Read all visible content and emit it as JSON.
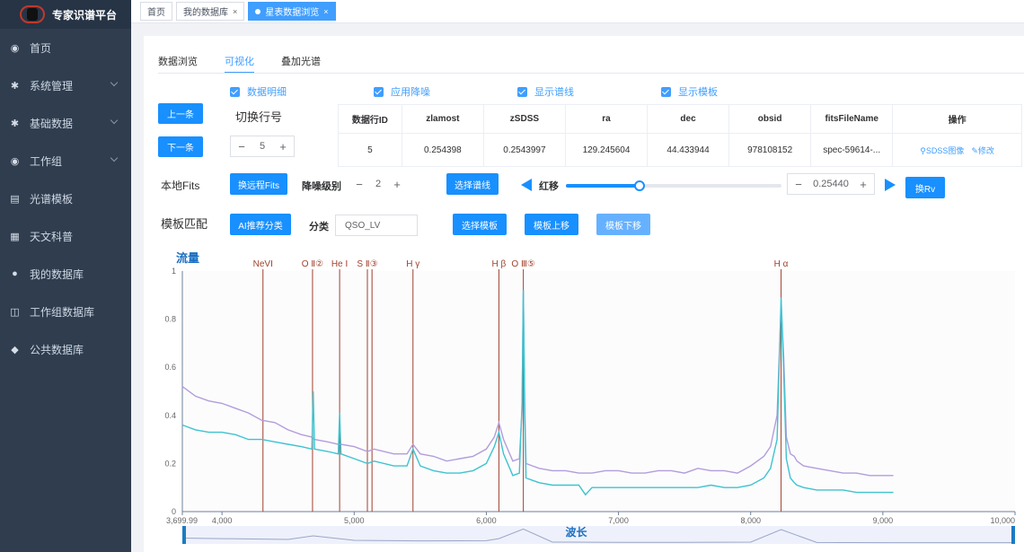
{
  "sidebar": {
    "title": "专家识谱平台",
    "items": [
      {
        "label": "首页",
        "icon": "dashboard-icon",
        "glyph": "◉",
        "expandable": false
      },
      {
        "label": "系统管理",
        "icon": "gear-icon",
        "glyph": "✱",
        "expandable": true
      },
      {
        "label": "基础数据",
        "icon": "gear-icon",
        "glyph": "✱",
        "expandable": true
      },
      {
        "label": "工作组",
        "icon": "dashboard-icon",
        "glyph": "◉",
        "expandable": true
      },
      {
        "label": "光谱模板",
        "icon": "chart-icon",
        "glyph": "▤",
        "expandable": false
      },
      {
        "label": "天文科普",
        "icon": "document-icon",
        "glyph": "▦",
        "expandable": false
      },
      {
        "label": "我的数据库",
        "icon": "user-icon",
        "glyph": "●",
        "expandable": false
      },
      {
        "label": "工作组数据库",
        "icon": "database-icon",
        "glyph": "◫",
        "expandable": false
      },
      {
        "label": "公共数据库",
        "icon": "users-icon",
        "glyph": "◆",
        "expandable": false
      }
    ]
  },
  "tabs": {
    "items": [
      {
        "label": "首页",
        "active": false,
        "closable": false
      },
      {
        "label": "我的数据库",
        "active": false,
        "closable": true
      },
      {
        "label": "星表数据浏览",
        "active": true,
        "closable": true
      }
    ],
    "close_glyph": "×"
  },
  "subtabs": {
    "browse": "数据浏览",
    "visualize": "可视化",
    "overlay": "叠加光谱"
  },
  "checkboxes": {
    "data_detail": "数据明细",
    "apply_denoise": "应用降噪",
    "show_lines": "显示谱线",
    "show_template": "显示模板"
  },
  "nav": {
    "prev": "上一条",
    "next": "下一条",
    "switch_row": "切换行号",
    "row_value": "5",
    "minus": "−",
    "plus": "+"
  },
  "table": {
    "headers": [
      "数据行ID",
      "zlamost",
      "zSDSS",
      "ra",
      "dec",
      "obsid",
      "fitsFileName",
      "操作"
    ],
    "row": [
      "5",
      "0.254398",
      "0.2543997",
      "129.245604",
      "44.433944",
      "978108152",
      "spec-59614-..."
    ],
    "action_sdss": "SDSS图像",
    "action_edit": "修改"
  },
  "controls": {
    "local_fits": "本地Fits",
    "remote_fits": "换远程Fits",
    "denoise_level_label": "降噪级别",
    "denoise_level": "2",
    "select_lines": "选择谱线",
    "redshift_label": "红移",
    "redshift_value": "0.25440",
    "redshift_fraction": 0.34,
    "change_rv": "换Rv",
    "template_match": "模板匹配",
    "ai_classify": "AI推荐分类",
    "class_label": "分类",
    "class_value": "QSO_LV",
    "select_template": "选择模板",
    "template_up": "模板上移",
    "template_down": "模板下移"
  },
  "chart_data": {
    "type": "line",
    "ylabel": "流量",
    "xlabel": "波长",
    "xlim": [
      3699.99,
      10000
    ],
    "ylim": [
      0,
      1
    ],
    "xticks": [
      {
        "value": 3699.99,
        "label": "3,699.99"
      },
      {
        "value": 4000,
        "label": "4,000"
      },
      {
        "value": 5000,
        "label": "5,000"
      },
      {
        "value": 6000,
        "label": "6,000"
      },
      {
        "value": 7000,
        "label": "7,000"
      },
      {
        "value": 8000,
        "label": "8,000"
      },
      {
        "value": 9000,
        "label": "9,000"
      },
      {
        "value": 10000,
        "label": "10,000"
      }
    ],
    "yticks": [
      {
        "value": 0,
        "label": "0"
      },
      {
        "value": 0.2,
        "label": "0.2"
      },
      {
        "value": 0.4,
        "label": "0.4"
      },
      {
        "value": 0.6,
        "label": "0.6"
      },
      {
        "value": 0.8,
        "label": "0.8"
      },
      {
        "value": 1,
        "label": "1"
      }
    ],
    "lines": [
      {
        "label": "NeVI",
        "x": 4310
      },
      {
        "label": "O Ⅱ②",
        "x": 4685
      },
      {
        "label": "He Ⅰ",
        "x": 4890
      },
      {
        "label": "S Ⅱ③",
        "x": 5100
      },
      {
        "label": "",
        "x": 5135
      },
      {
        "label": "H γ",
        "x": 5445
      },
      {
        "label": "H β",
        "x": 6095
      },
      {
        "label": "O Ⅲ⑤",
        "x": 6280
      },
      {
        "label": "H α",
        "x": 8230
      }
    ],
    "series": [
      {
        "color": "#b39ddb",
        "x": [
          3699.99,
          3800,
          3900,
          4000,
          4100,
          4200,
          4300,
          4400,
          4500,
          4600,
          4680,
          4700,
          4800,
          4880,
          4900,
          5000,
          5100,
          5150,
          5300,
          5400,
          5445,
          5500,
          5600,
          5700,
          5800,
          5900,
          6000,
          6060,
          6095,
          6130,
          6200,
          6250,
          6270,
          6280,
          6290,
          6300,
          6350,
          6400,
          6500,
          6600,
          6700,
          6800,
          6900,
          7000,
          7100,
          7200,
          7300,
          7400,
          7500,
          7600,
          7700,
          7800,
          7900,
          8000,
          8100,
          8150,
          8200,
          8230,
          8250,
          8270,
          8300,
          8330,
          8350,
          8400,
          8500,
          8600,
          8700,
          8800,
          8900,
          9000,
          9080
        ],
        "y": [
          0.52,
          0.48,
          0.46,
          0.45,
          0.43,
          0.41,
          0.38,
          0.37,
          0.34,
          0.32,
          0.31,
          0.3,
          0.29,
          0.28,
          0.28,
          0.27,
          0.25,
          0.26,
          0.24,
          0.24,
          0.28,
          0.24,
          0.23,
          0.21,
          0.22,
          0.23,
          0.26,
          0.31,
          0.37,
          0.3,
          0.21,
          0.22,
          0.42,
          0.92,
          0.42,
          0.2,
          0.19,
          0.18,
          0.17,
          0.17,
          0.16,
          0.16,
          0.17,
          0.17,
          0.16,
          0.16,
          0.17,
          0.17,
          0.16,
          0.18,
          0.17,
          0.17,
          0.16,
          0.19,
          0.23,
          0.27,
          0.4,
          0.86,
          0.64,
          0.31,
          0.24,
          0.23,
          0.21,
          0.19,
          0.18,
          0.17,
          0.16,
          0.16,
          0.15,
          0.15,
          0.15
        ]
      },
      {
        "color": "#3ec3cf",
        "x": [
          3699.99,
          3800,
          3900,
          4000,
          4100,
          4200,
          4300,
          4400,
          4500,
          4600,
          4680,
          4690,
          4700,
          4800,
          4880,
          4890,
          4900,
          5000,
          5100,
          5150,
          5300,
          5400,
          5445,
          5500,
          5600,
          5700,
          5800,
          5900,
          6000,
          6060,
          6095,
          6130,
          6200,
          6250,
          6270,
          6280,
          6290,
          6300,
          6350,
          6400,
          6500,
          6600,
          6700,
          6750,
          6800,
          6900,
          7000,
          7100,
          7200,
          7300,
          7400,
          7500,
          7600,
          7700,
          7800,
          7900,
          8000,
          8100,
          8150,
          8200,
          8230,
          8250,
          8270,
          8300,
          8330,
          8350,
          8400,
          8500,
          8600,
          8700,
          8800,
          8900,
          9000,
          9080
        ],
        "y": [
          0.36,
          0.34,
          0.33,
          0.33,
          0.32,
          0.3,
          0.3,
          0.29,
          0.28,
          0.27,
          0.26,
          0.5,
          0.26,
          0.25,
          0.24,
          0.41,
          0.24,
          0.22,
          0.2,
          0.21,
          0.19,
          0.19,
          0.26,
          0.19,
          0.17,
          0.16,
          0.16,
          0.17,
          0.2,
          0.27,
          0.33,
          0.24,
          0.15,
          0.16,
          0.45,
          0.92,
          0.45,
          0.14,
          0.13,
          0.12,
          0.11,
          0.11,
          0.11,
          0.07,
          0.1,
          0.1,
          0.1,
          0.1,
          0.1,
          0.1,
          0.1,
          0.1,
          0.1,
          0.11,
          0.1,
          0.1,
          0.11,
          0.14,
          0.18,
          0.3,
          0.89,
          0.58,
          0.22,
          0.14,
          0.12,
          0.11,
          0.1,
          0.09,
          0.09,
          0.09,
          0.08,
          0.08,
          0.08,
          0.08
        ]
      }
    ],
    "minimap": {
      "x": [
        3699.99,
        4000,
        4500,
        4690,
        5000,
        5500,
        6000,
        6095,
        6280,
        6500,
        7000,
        7500,
        8000,
        8230,
        8500,
        9000,
        10000
      ],
      "y": [
        0.36,
        0.33,
        0.28,
        0.5,
        0.22,
        0.19,
        0.2,
        0.33,
        0.92,
        0.11,
        0.1,
        0.1,
        0.11,
        0.89,
        0.09,
        0.08,
        0.08
      ]
    }
  }
}
